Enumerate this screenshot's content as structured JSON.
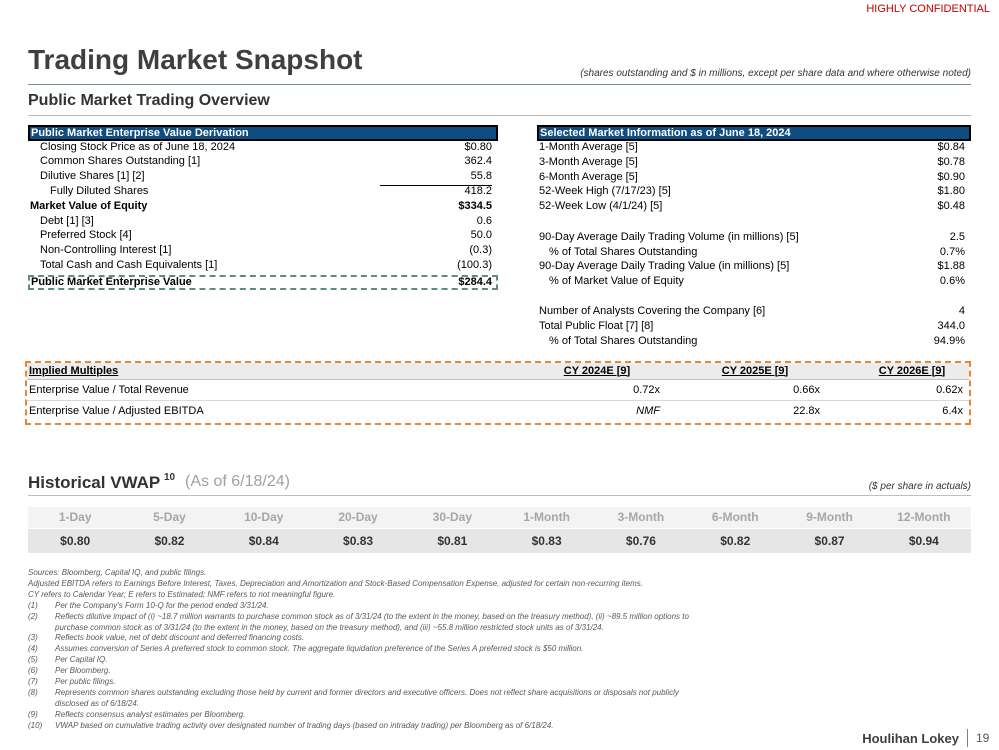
{
  "header": {
    "confidential": "HIGHLY CONFIDENTIAL",
    "title": "Trading Market Snapshot",
    "note": "(shares outstanding and $ in millions, except per share data and where otherwise noted)",
    "section": "Public Market Trading Overview"
  },
  "ev_table": {
    "title": "Public Market Enterprise Value Derivation",
    "rows": [
      [
        "Closing Stock Price as of June 18, 2024",
        "$0.80"
      ],
      [
        "Common Shares Outstanding [1]",
        "362.4"
      ],
      [
        "Dilutive Shares [1] [2]",
        "55.8"
      ],
      [
        "Fully Diluted Shares",
        "418.2"
      ],
      [
        "Market Value of Equity",
        "$334.5"
      ],
      [
        "Debt [1] [3]",
        "0.6"
      ],
      [
        "Preferred Stock [4]",
        "50.0"
      ],
      [
        "Non-Controlling Interest [1]",
        "(0.3)"
      ],
      [
        "Total Cash and Cash Equivalents [1]",
        "(100.3)"
      ]
    ],
    "total": [
      "Public Market Enterprise Value",
      "$284.4"
    ]
  },
  "market_table": {
    "title": "Selected Market Information as of June 18, 2024",
    "rows": [
      [
        "1-Month Average [5]",
        "$0.84"
      ],
      [
        "3-Month Average [5]",
        "$0.78"
      ],
      [
        "6-Month Average [5]",
        "$0.90"
      ],
      [
        "52-Week High (7/17/23) [5]",
        "$1.80"
      ],
      [
        "52-Week Low (4/1/24) [5]",
        "$0.48"
      ],
      [
        "90-Day Average Daily Trading Volume (in millions) [5]",
        "2.5"
      ],
      [
        "% of Total Shares Outstanding",
        "0.7%"
      ],
      [
        "90-Day Average Daily Trading Value (in millions) [5]",
        "$1.88"
      ],
      [
        "% of Market Value of Equity",
        "0.6%"
      ],
      [
        "Number of Analysts Covering the Company [6]",
        "4"
      ],
      [
        "Total Public Float [7] [8]",
        "344.0"
      ],
      [
        "% of Total Shares Outstanding",
        "94.9%"
      ]
    ]
  },
  "multiples": {
    "header": [
      "Implied Multiples",
      "CY 2024E [9]",
      "CY 2025E [9]",
      "CY 2026E [9]"
    ],
    "rows": [
      [
        "Enterprise Value / Total Revenue",
        "0.72x",
        "0.66x",
        "0.62x"
      ],
      [
        "Enterprise Value / Adjusted EBITDA",
        "NMF",
        "22.8x",
        "6.4x"
      ]
    ]
  },
  "vwap": {
    "title": "Historical VWAP",
    "superscript": "10",
    "as_of": "(As of 6/18/24)",
    "note": "($ per share in actuals)",
    "periods": [
      "1-Day",
      "5-Day",
      "10-Day",
      "20-Day",
      "30-Day",
      "1-Month",
      "3-Month",
      "6-Month",
      "9-Month",
      "12-Month"
    ],
    "values": [
      "$0.80",
      "$0.82",
      "$0.84",
      "$0.83",
      "$0.81",
      "$0.83",
      "$0.76",
      "$0.82",
      "$0.87",
      "$0.94"
    ]
  },
  "footnotes": {
    "sources": [
      "Sources: Bloomberg, Capital IQ, and public filings.",
      "Adjusted EBITDA refers to Earnings Before Interest, Taxes, Depreciation and Amortization and Stock-Based Compensation Expense, adjusted for certain non-recurring items.",
      "CY refers to Calendar Year; E refers to Estimated; NMF refers to not meaningful figure."
    ],
    "notes": [
      {
        "num": "(1)",
        "lines": [
          "Per the Company's Form 10-Q for the period ended 3/31/24."
        ]
      },
      {
        "num": "(2)",
        "lines": [
          "Reflects dilutive impact of (i) ~18.7 million warrants to purchase common stock as of 3/31/24 (to the extent in the money, based on the treasury method), (ii) ~89.5 million options to",
          "purchase common stock as of 3/31/24 (to the extent in the money, based on the treasury method), and (iii) ~55.8 million restricted stock units as of 3/31/24."
        ]
      },
      {
        "num": "(3)",
        "lines": [
          "Reflects book value, net of debt discount and deferred financing costs."
        ]
      },
      {
        "num": "(4)",
        "lines": [
          "Assumes conversion of Series A preferred stock to common stock. The aggregate liquidation preference of the Series A preferred stock is $50 million."
        ]
      },
      {
        "num": "(5)",
        "lines": [
          "Per Capital IQ."
        ]
      },
      {
        "num": "(6)",
        "lines": [
          "Per Bloomberg."
        ]
      },
      {
        "num": "(7)",
        "lines": [
          "Per public filings."
        ]
      },
      {
        "num": "(8)",
        "lines": [
          "Represents common shares outstanding excluding those held by current and former directors and executive officers. Does not reflect share acquisitions or disposals not publicly",
          "disclosed as of 6/18/24."
        ]
      },
      {
        "num": "(9)",
        "lines": [
          "Reflects consensus analyst estimates per Bloomberg."
        ]
      },
      {
        "num": "(10)",
        "lines": [
          "VWAP based on cumulative trading activity over designated number of trading days (based on intraday trading) per Bloomberg as of 6/18/24."
        ]
      }
    ]
  },
  "footer": {
    "brand": "Houlihan Lokey",
    "page": "19"
  }
}
